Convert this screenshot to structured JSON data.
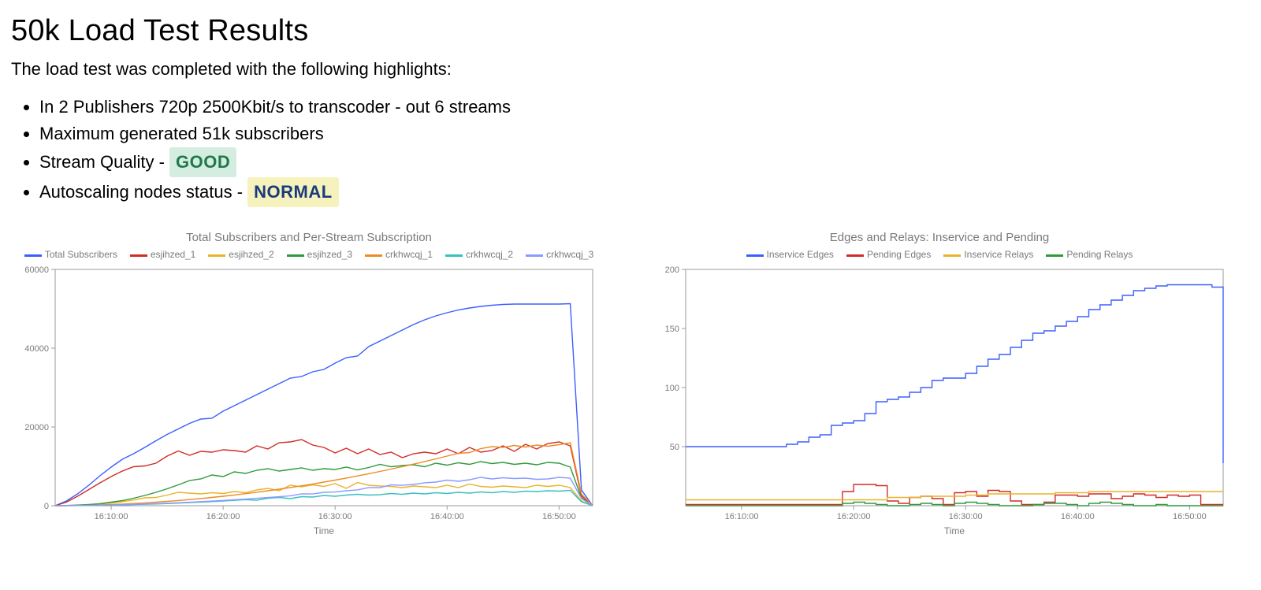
{
  "title": "50k Load Test Results",
  "intro": "The load test was completed with the following highlights:",
  "highlights": [
    {
      "text": "In 2 Publishers 720p 2500Kbit/s to transcoder - out 6 streams"
    },
    {
      "text": "Maximum generated 51k subscribers"
    },
    {
      "text_prefix": "Stream Quality - ",
      "badge": {
        "label": "GOOD",
        "bg": "#d5ede0",
        "fg": "#1e7a4a"
      }
    },
    {
      "text_prefix": "Autoscaling nodes status - ",
      "badge": {
        "label": "NORMAL",
        "bg": "#f6f2bd",
        "fg": "#1a3b7a"
      }
    }
  ],
  "chart_left": {
    "type": "line",
    "title": "Total Subscribers and Per-Stream Subscription",
    "xlabel": "Time",
    "background_color": "#ffffff",
    "axis_color": "#9a9a9a",
    "text_color": "#7a7a7a",
    "line_width": 1.4,
    "title_fontsize": 15,
    "tick_fontsize": 11,
    "y": {
      "min": 0,
      "max": 60000,
      "ticks": [
        0,
        20000,
        40000,
        60000
      ]
    },
    "x": {
      "min": 0,
      "max": 48,
      "ticks": [
        {
          "v": 5,
          "label": "16:10:00"
        },
        {
          "v": 15,
          "label": "16:20:00"
        },
        {
          "v": 25,
          "label": "16:30:00"
        },
        {
          "v": 35,
          "label": "16:40:00"
        },
        {
          "v": 45,
          "label": "16:50:00"
        }
      ]
    },
    "series": [
      {
        "name": "Total Subscribers",
        "color": "#3b5fff",
        "data": [
          0,
          1200,
          3000,
          5200,
          7600,
          9800,
          11800,
          13200,
          14800,
          16500,
          18100,
          19500,
          20900,
          22000,
          22200,
          24000,
          25400,
          26800,
          28200,
          29600,
          31000,
          32400,
          32800,
          34000,
          34600,
          36200,
          37600,
          38000,
          40400,
          41800,
          43200,
          44600,
          46000,
          47200,
          48200,
          49000,
          49700,
          50200,
          50600,
          50900,
          51100,
          51200,
          51200,
          51200,
          51200,
          51200,
          51300,
          4000,
          0
        ]
      },
      {
        "name": "esjihzed_1",
        "color": "#d22c26",
        "data": [
          0,
          900,
          2400,
          4100,
          5800,
          7400,
          8800,
          9900,
          10100,
          10800,
          12600,
          13900,
          12800,
          13800,
          13600,
          14200,
          14000,
          13600,
          15200,
          14400,
          16000,
          16200,
          16800,
          15400,
          14800,
          13400,
          14600,
          13200,
          14400,
          13000,
          13600,
          12200,
          13200,
          13600,
          13200,
          14400,
          13200,
          14800,
          13600,
          14000,
          15200,
          13800,
          15600,
          14400,
          15800,
          16200,
          15200,
          2500,
          0
        ]
      },
      {
        "name": "esjihzed_2",
        "color": "#e9b32b",
        "data": [
          0,
          50,
          120,
          240,
          420,
          680,
          1020,
          1460,
          2000,
          2100,
          2700,
          3400,
          3200,
          3000,
          3300,
          3100,
          3600,
          3300,
          4000,
          4400,
          3800,
          5200,
          4800,
          5300,
          4900,
          5600,
          4400,
          5900,
          5200,
          5000,
          4900,
          4600,
          5000,
          4800,
          4600,
          5200,
          4600,
          5500,
          4900,
          4700,
          5000,
          4800,
          4600,
          5200,
          4900,
          5200,
          4600,
          1200,
          0
        ]
      },
      {
        "name": "esjihzed_3",
        "color": "#2e9a3a",
        "data": [
          0,
          60,
          160,
          300,
          520,
          900,
          1300,
          1900,
          2600,
          3400,
          4300,
          5300,
          6400,
          6800,
          7800,
          7400,
          8600,
          8200,
          9000,
          9400,
          8800,
          9200,
          9600,
          9000,
          9400,
          9200,
          9800,
          9100,
          9700,
          10500,
          9900,
          10200,
          10400,
          9900,
          10800,
          10300,
          10900,
          10500,
          11200,
          10700,
          11000,
          10500,
          10800,
          10400,
          11000,
          10800,
          9800,
          2000,
          0
        ]
      },
      {
        "name": "crkhwcqj_1",
        "color": "#f08a24",
        "data": [
          0,
          20,
          60,
          120,
          200,
          300,
          420,
          560,
          720,
          900,
          1100,
          1320,
          1560,
          1820,
          2100,
          2400,
          2720,
          3060,
          3420,
          3800,
          4200,
          4620,
          5060,
          5520,
          6000,
          6500,
          7020,
          7560,
          8120,
          8700,
          9300,
          9920,
          10560,
          11220,
          11900,
          12600,
          13300,
          13500,
          14500,
          15000,
          14800,
          15300,
          14900,
          15400,
          15100,
          15500,
          16000,
          3000,
          0
        ]
      },
      {
        "name": "crkhwcqj_2",
        "color": "#39bfc2",
        "data": [
          0,
          10,
          30,
          60,
          100,
          150,
          210,
          280,
          360,
          450,
          550,
          660,
          780,
          910,
          1050,
          1200,
          1360,
          1530,
          1400,
          1900,
          2100,
          1800,
          2300,
          2200,
          2600,
          2400,
          2700,
          2900,
          2700,
          2800,
          3100,
          2900,
          3200,
          3000,
          3300,
          3100,
          3400,
          3200,
          3500,
          3300,
          3600,
          3400,
          3700,
          3600,
          3800,
          3700,
          3900,
          1000,
          0
        ]
      },
      {
        "name": "crkhwcqj_3",
        "color": "#8a9bff",
        "data": [
          0,
          15,
          40,
          80,
          130,
          190,
          260,
          340,
          430,
          530,
          640,
          760,
          890,
          1030,
          1180,
          1340,
          1510,
          1690,
          1880,
          2080,
          2290,
          2510,
          3000,
          2980,
          3400,
          3480,
          3800,
          4020,
          4600,
          4580,
          5300,
          5180,
          5400,
          5820,
          6000,
          6500,
          6200,
          6600,
          7200,
          6800,
          7100,
          6900,
          7000,
          6700,
          6800,
          7200,
          7000,
          1800,
          0
        ]
      }
    ]
  },
  "chart_right": {
    "type": "step",
    "title": "Edges and Relays: Inservice and Pending",
    "xlabel": "Time",
    "background_color": "#ffffff",
    "axis_color": "#9a9a9a",
    "text_color": "#7a7a7a",
    "line_width": 1.4,
    "title_fontsize": 15,
    "tick_fontsize": 11,
    "y": {
      "min": 0,
      "max": 200,
      "ticks": [
        50,
        100,
        150,
        200
      ]
    },
    "x": {
      "min": 0,
      "max": 48,
      "ticks": [
        {
          "v": 5,
          "label": "16:10:00"
        },
        {
          "v": 15,
          "label": "16:20:00"
        },
        {
          "v": 25,
          "label": "16:30:00"
        },
        {
          "v": 35,
          "label": "16:40:00"
        },
        {
          "v": 45,
          "label": "16:50:00"
        }
      ]
    },
    "series": [
      {
        "name": "Inservice Edges",
        "color": "#3b5fff",
        "step": true,
        "data": [
          50,
          50,
          50,
          50,
          50,
          50,
          50,
          50,
          50,
          52,
          54,
          58,
          60,
          68,
          70,
          72,
          78,
          88,
          90,
          92,
          96,
          100,
          106,
          108,
          108,
          112,
          118,
          124,
          128,
          134,
          140,
          146,
          148,
          152,
          156,
          160,
          166,
          170,
          174,
          178,
          182,
          184,
          186,
          187,
          187,
          187,
          187,
          185,
          36
        ]
      },
      {
        "name": "Pending Edges",
        "color": "#d22c26",
        "step": true,
        "data": [
          1,
          1,
          1,
          1,
          1,
          1,
          1,
          1,
          1,
          1,
          1,
          1,
          1,
          1,
          12,
          18,
          18,
          17,
          4,
          2,
          7,
          8,
          6,
          1,
          11,
          12,
          8,
          13,
          12,
          4,
          1,
          1,
          3,
          9,
          9,
          8,
          10,
          10,
          6,
          8,
          10,
          9,
          7,
          9,
          8,
          9,
          1,
          1,
          1
        ]
      },
      {
        "name": "Inservice Relays",
        "color": "#e9b32b",
        "step": true,
        "data": [
          5,
          5,
          5,
          5,
          5,
          5,
          5,
          5,
          5,
          5,
          5,
          5,
          5,
          5,
          5,
          5,
          5,
          5,
          7,
          7,
          7,
          8,
          8,
          8,
          8,
          9,
          9,
          10,
          10,
          10,
          10,
          10,
          10,
          11,
          11,
          11,
          12,
          12,
          12,
          12,
          12,
          12,
          12,
          12,
          12,
          12,
          12,
          12,
          12
        ]
      },
      {
        "name": "Pending Relays",
        "color": "#2e9a3a",
        "step": true,
        "data": [
          0,
          0,
          0,
          0,
          0,
          0,
          0,
          0,
          0,
          0,
          0,
          0,
          0,
          0,
          2,
          3,
          2,
          1,
          0,
          0,
          1,
          2,
          1,
          0,
          2,
          3,
          2,
          1,
          0,
          0,
          0,
          1,
          2,
          2,
          1,
          0,
          2,
          3,
          2,
          1,
          0,
          0,
          1,
          0,
          0,
          0,
          0,
          0,
          0
        ]
      }
    ]
  }
}
